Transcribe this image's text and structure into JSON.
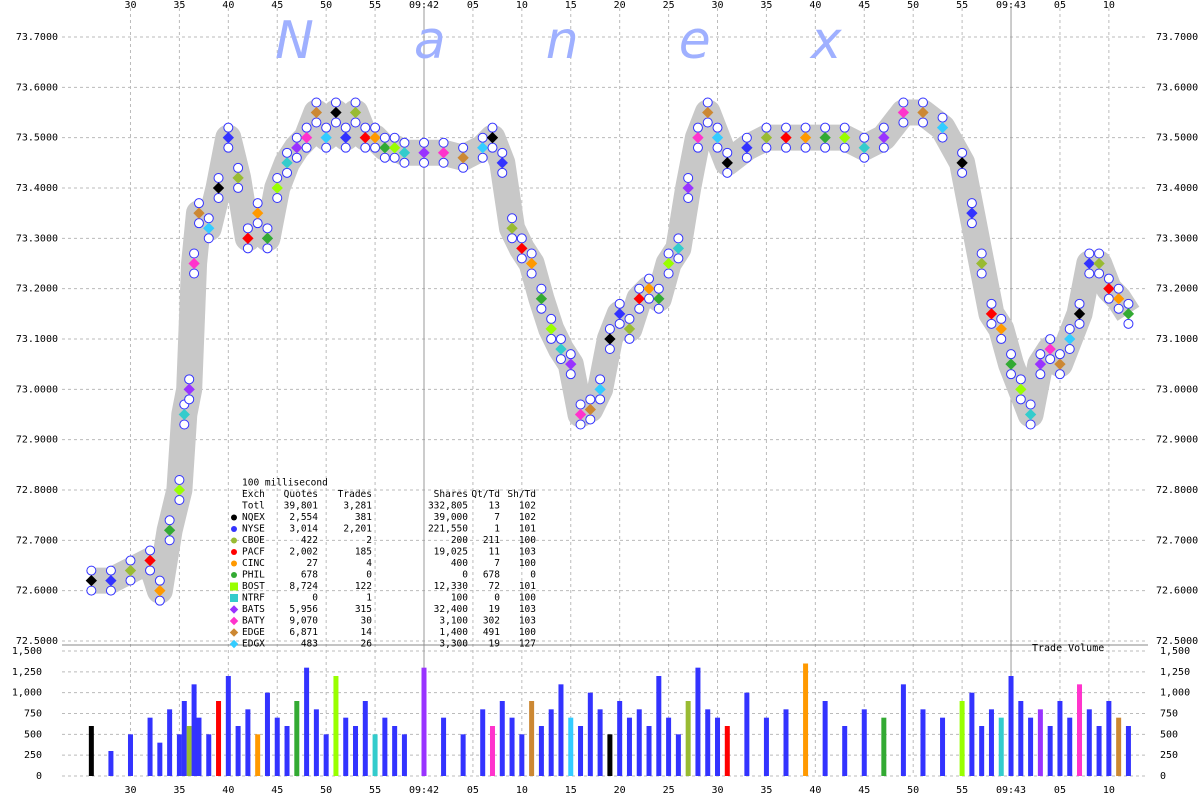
{
  "chart_data": [
    {
      "type": "line",
      "watermark": "Nanex",
      "xlim": [
        23,
        134
      ],
      "xticks": [
        30,
        35,
        40,
        45,
        50,
        55,
        {
          "value": 60,
          "label": "09:42"
        },
        {
          "value": 65,
          "label": "05"
        },
        {
          "value": 70,
          "label": "10"
        },
        {
          "value": 75,
          "label": "15"
        },
        {
          "value": 80,
          "label": "20"
        },
        {
          "value": 85,
          "label": "25"
        },
        {
          "value": 90,
          "label": "30"
        },
        {
          "value": 95,
          "label": "35"
        },
        {
          "value": 100,
          "label": "40"
        },
        {
          "value": 105,
          "label": "45"
        },
        {
          "value": 110,
          "label": "50"
        },
        {
          "value": 115,
          "label": "55"
        },
        {
          "value": 120,
          "label": "09:43"
        },
        {
          "value": 125,
          "label": "05"
        },
        {
          "value": 130,
          "label": "10"
        }
      ],
      "ylim": [
        72.5,
        73.7
      ],
      "yticks": [
        {
          "value": 73.7,
          "label": "73.7000"
        },
        {
          "value": 73.6,
          "label": "73.6000"
        },
        {
          "value": 73.5,
          "label": "73.5000"
        },
        {
          "value": 73.4,
          "label": "73.4000"
        },
        {
          "value": 73.3,
          "label": "73.3000"
        },
        {
          "value": 73.2,
          "label": "73.2000"
        },
        {
          "value": 73.1,
          "label": "73.1000"
        },
        {
          "value": 73.0,
          "label": "73.0000"
        },
        {
          "value": 72.9,
          "label": "72.9000"
        },
        {
          "value": 72.8,
          "label": "72.8000"
        },
        {
          "value": 72.7,
          "label": "72.7000"
        },
        {
          "value": 72.6,
          "label": "72.6000"
        },
        {
          "value": 72.5,
          "label": "72.5000"
        }
      ],
      "grid": true,
      "band_color": "#c8c8c8",
      "series": [
        {
          "color": "#3333ff",
          "x": [
            26,
            28,
            30,
            32,
            33,
            34,
            35,
            35.5,
            36,
            36.5,
            37,
            38,
            39,
            40,
            41,
            42,
            43,
            44,
            45,
            46,
            47,
            48,
            49,
            50,
            51,
            52,
            53,
            54,
            55,
            56,
            57,
            58,
            60,
            62,
            64,
            66,
            67,
            68,
            69,
            70,
            71,
            72,
            73,
            74,
            75,
            76,
            77,
            78,
            79,
            80,
            81,
            82,
            83,
            84,
            85,
            86,
            87,
            88,
            89,
            90,
            91,
            93,
            95,
            97,
            99,
            101,
            103,
            105,
            107,
            109,
            111,
            113,
            115,
            116,
            117,
            118,
            119,
            120,
            121,
            122,
            123,
            124,
            125,
            126,
            127,
            128,
            129,
            130,
            131,
            132
          ],
          "values": [
            72.62,
            72.62,
            72.64,
            72.66,
            72.6,
            72.72,
            72.8,
            72.95,
            73.0,
            73.25,
            73.35,
            73.32,
            73.4,
            73.5,
            73.42,
            73.3,
            73.35,
            73.3,
            73.4,
            73.45,
            73.48,
            73.5,
            73.55,
            73.5,
            73.55,
            73.5,
            73.55,
            73.5,
            73.5,
            73.48,
            73.48,
            73.47,
            73.47,
            73.47,
            73.46,
            73.48,
            73.5,
            73.45,
            73.32,
            73.28,
            73.25,
            73.18,
            73.12,
            73.08,
            73.05,
            72.95,
            72.96,
            73.0,
            73.1,
            73.15,
            73.12,
            73.18,
            73.2,
            73.18,
            73.25,
            73.28,
            73.4,
            73.5,
            73.55,
            73.5,
            73.45,
            73.48,
            73.5,
            73.5,
            73.5,
            73.5,
            73.5,
            73.48,
            73.5,
            73.55,
            73.55,
            73.52,
            73.45,
            73.35,
            73.25,
            73.15,
            73.12,
            73.05,
            73.0,
            72.95,
            73.05,
            73.08,
            73.05,
            73.1,
            73.15,
            73.25,
            73.25,
            73.2,
            73.18,
            73.15
          ]
        }
      ],
      "table": {
        "title": "100 millisecond",
        "columns": [
          "Exch",
          "Quotes",
          "Trades",
          "Shares",
          "Qt/Td",
          "Sh/Td"
        ],
        "rows": [
          {
            "cells": [
              "Totl",
              "39,801",
              "3,281",
              "332,805",
              "13",
              "102"
            ],
            "color": null,
            "shape": null
          },
          {
            "cells": [
              "NQEX",
              "2,554",
              "381",
              "39,000",
              "7",
              "102"
            ],
            "color": "#000000",
            "shape": "circle"
          },
          {
            "cells": [
              "NYSE",
              "3,014",
              "2,201",
              "221,550",
              "1",
              "101"
            ],
            "color": "#3333ff",
            "shape": "circle"
          },
          {
            "cells": [
              "CBOE",
              "422",
              "2",
              "200",
              "211",
              "100"
            ],
            "color": "#99bb33",
            "shape": "circle"
          },
          {
            "cells": [
              "PACF",
              "2,002",
              "185",
              "19,025",
              "11",
              "103"
            ],
            "color": "#ff0000",
            "shape": "circle"
          },
          {
            "cells": [
              "CINC",
              "27",
              "4",
              "400",
              "7",
              "100"
            ],
            "color": "#ff9900",
            "shape": "circle"
          },
          {
            "cells": [
              "PHIL",
              "678",
              "0",
              "0",
              "678",
              "0"
            ],
            "color": "#33aa33",
            "shape": "circle"
          },
          {
            "cells": [
              "BOST",
              "8,724",
              "122",
              "12,330",
              "72",
              "101"
            ],
            "color": "#99ff00",
            "shape": "square"
          },
          {
            "cells": [
              "NTRF",
              "0",
              "1",
              "100",
              "0",
              "100"
            ],
            "color": "#33cccc",
            "shape": "square"
          },
          {
            "cells": [
              "BATS",
              "5,956",
              "315",
              "32,400",
              "19",
              "103"
            ],
            "color": "#9933ff",
            "shape": "diamond"
          },
          {
            "cells": [
              "BATY",
              "9,070",
              "30",
              "3,100",
              "302",
              "103"
            ],
            "color": "#ff33cc",
            "shape": "diamond"
          },
          {
            "cells": [
              "EDGE",
              "6,871",
              "14",
              "1,400",
              "491",
              "100"
            ],
            "color": "#cc8833",
            "shape": "diamond"
          },
          {
            "cells": [
              "EDGX",
              "483",
              "26",
              "3,300",
              "19",
              "127"
            ],
            "color": "#33ccff",
            "shape": "diamond"
          }
        ]
      }
    },
    {
      "type": "bar",
      "label": "Trade Volume",
      "ylim": [
        0,
        1500
      ],
      "yticks": [
        {
          "value": 1500,
          "label": "1,500"
        },
        {
          "value": 1250,
          "label": "1,250"
        },
        {
          "value": 1000,
          "label": "1,000"
        },
        750,
        500,
        250,
        0
      ],
      "color": "#3333ff",
      "x": [
        26,
        28,
        30,
        32,
        33,
        34,
        35,
        35.5,
        36,
        36.5,
        37,
        38,
        39,
        40,
        41,
        42,
        43,
        44,
        45,
        46,
        47,
        48,
        49,
        50,
        51,
        52,
        53,
        54,
        55,
        56,
        57,
        58,
        60,
        62,
        64,
        66,
        67,
        68,
        69,
        70,
        71,
        72,
        73,
        74,
        75,
        76,
        77,
        78,
        79,
        80,
        81,
        82,
        83,
        84,
        85,
        86,
        87,
        88,
        89,
        90,
        91,
        93,
        95,
        97,
        99,
        101,
        103,
        105,
        107,
        109,
        111,
        113,
        115,
        116,
        117,
        118,
        119,
        120,
        121,
        122,
        123,
        124,
        125,
        126,
        127,
        128,
        129,
        130,
        131,
        132
      ],
      "values": [
        600,
        300,
        500,
        700,
        400,
        800,
        500,
        900,
        600,
        1100,
        700,
        500,
        900,
        1200,
        600,
        800,
        500,
        1000,
        700,
        600,
        900,
        1300,
        800,
        500,
        1200,
        700,
        600,
        900,
        500,
        700,
        600,
        500,
        1300,
        700,
        500,
        800,
        600,
        900,
        700,
        500,
        900,
        600,
        800,
        1100,
        700,
        600,
        1000,
        800,
        500,
        900,
        700,
        800,
        600,
        1200,
        700,
        500,
        900,
        1300,
        800,
        700,
        600,
        1000,
        700,
        800,
        1350,
        900,
        600,
        800,
        700,
        1100,
        800,
        700,
        900,
        1000,
        600,
        800,
        700,
        1200,
        900,
        700,
        800,
        600,
        900,
        700,
        1100,
        800,
        600,
        900,
        700,
        600
      ]
    }
  ]
}
